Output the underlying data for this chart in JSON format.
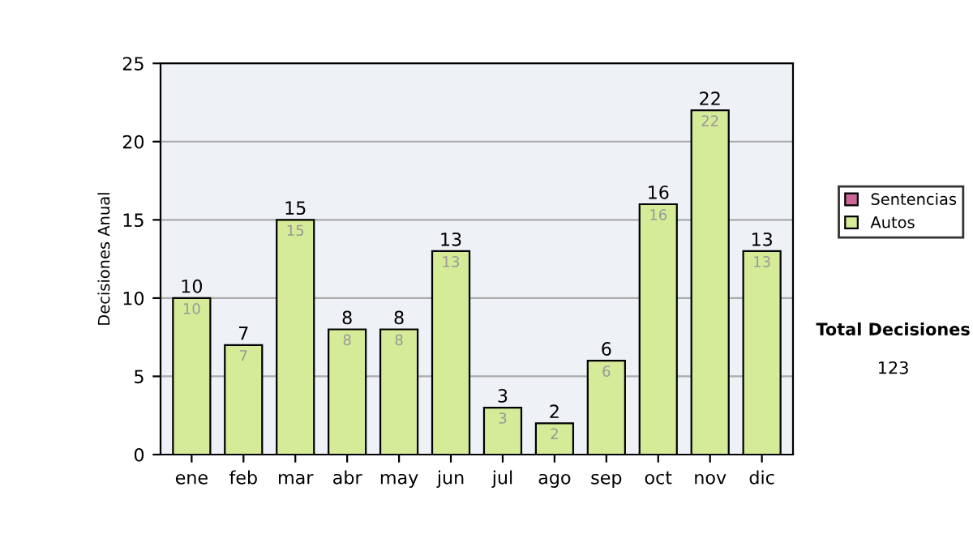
{
  "chart_data": {
    "type": "bar",
    "stacked": true,
    "ylabel": "Decisiones Anual",
    "categories": [
      "ene",
      "feb",
      "mar",
      "abr",
      "may",
      "jun",
      "jul",
      "ago",
      "sep",
      "oct",
      "nov",
      "dic"
    ],
    "series": [
      {
        "name": "Sentencias",
        "color": "#cc6699",
        "values": [
          0,
          0,
          0,
          0,
          0,
          0,
          0,
          0,
          0,
          0,
          0,
          0
        ]
      },
      {
        "name": "Autos",
        "color": "#d6eb98",
        "values": [
          10,
          7,
          15,
          8,
          8,
          13,
          3,
          2,
          6,
          16,
          22,
          13
        ],
        "value_labels": [
          "10",
          "7",
          "15",
          "8",
          "8",
          "13",
          "3",
          "2",
          "6",
          "16",
          "22",
          "13"
        ]
      }
    ],
    "totals": [
      "10",
      "7",
      "15",
      "8",
      "8",
      "13",
      "3",
      "2",
      "6",
      "16",
      "22",
      "13"
    ],
    "ylim": [
      0,
      25
    ],
    "yticks": [
      0,
      5,
      10,
      15,
      20,
      25
    ],
    "grid": "y",
    "legend": "right",
    "annotations": [
      "Total Decisiones",
      "123"
    ]
  }
}
